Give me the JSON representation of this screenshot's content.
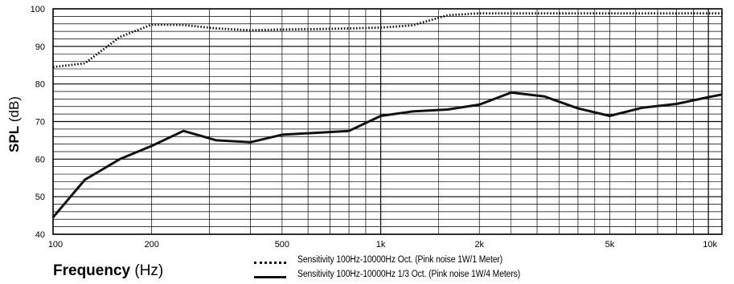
{
  "chart_data": {
    "type": "line",
    "xscale": "log",
    "xlim": [
      100,
      11000
    ],
    "ylim": [
      40,
      100
    ],
    "yticks": [
      40,
      50,
      60,
      70,
      80,
      90,
      100
    ],
    "ytick_labels": [
      "40",
      "50",
      "60",
      "70",
      "80",
      "90",
      "100"
    ],
    "xticks": [
      100,
      200,
      500,
      1000,
      2000,
      5000,
      10000
    ],
    "xtick_labels": [
      "100",
      "200",
      "500",
      "1k",
      "2k",
      "5k",
      "10k"
    ],
    "ylabel_bold": "SPL",
    "ylabel_unit": "(dB)",
    "xlabel_bold": "Frequency",
    "xlabel_unit": "(Hz)",
    "grid": true,
    "legend_position": "bottom-center",
    "series": [
      {
        "name": "Sensitivity 100Hz-10000Hz Oct. (Pink noise 1W/1 Meter)",
        "style": "dotted",
        "color": "#111111",
        "points": [
          [
            100,
            84.5
          ],
          [
            125,
            85.5
          ],
          [
            160,
            92.5
          ],
          [
            200,
            95.8
          ],
          [
            250,
            95.7
          ],
          [
            315,
            94.8
          ],
          [
            400,
            94.3
          ],
          [
            500,
            94.5
          ],
          [
            630,
            94.6
          ],
          [
            800,
            94.8
          ],
          [
            1000,
            95.0
          ],
          [
            1250,
            95.6
          ],
          [
            1600,
            98.3
          ],
          [
            2000,
            98.8
          ],
          [
            2500,
            98.8
          ],
          [
            3150,
            98.8
          ],
          [
            4000,
            98.8
          ],
          [
            5000,
            98.8
          ],
          [
            6300,
            98.8
          ],
          [
            8000,
            98.8
          ],
          [
            10000,
            98.8
          ],
          [
            11000,
            98.8
          ]
        ]
      },
      {
        "name": "Sensitivity 100Hz-10000Hz 1/3 Oct. (Pink noise 1W/4 Meters)",
        "style": "solid",
        "color": "#111111",
        "points": [
          [
            100,
            44.5
          ],
          [
            125,
            54.5
          ],
          [
            160,
            60.0
          ],
          [
            200,
            63.5
          ],
          [
            250,
            67.5
          ],
          [
            315,
            65.0
          ],
          [
            400,
            64.5
          ],
          [
            500,
            66.5
          ],
          [
            630,
            67.0
          ],
          [
            800,
            67.5
          ],
          [
            1000,
            71.5
          ],
          [
            1250,
            72.7
          ],
          [
            1600,
            73.2
          ],
          [
            2000,
            74.5
          ],
          [
            2500,
            77.7
          ],
          [
            3150,
            76.7
          ],
          [
            4000,
            73.5
          ],
          [
            5000,
            71.5
          ],
          [
            6300,
            73.7
          ],
          [
            8000,
            74.7
          ],
          [
            10000,
            76.5
          ],
          [
            11000,
            77.2
          ]
        ]
      }
    ]
  }
}
